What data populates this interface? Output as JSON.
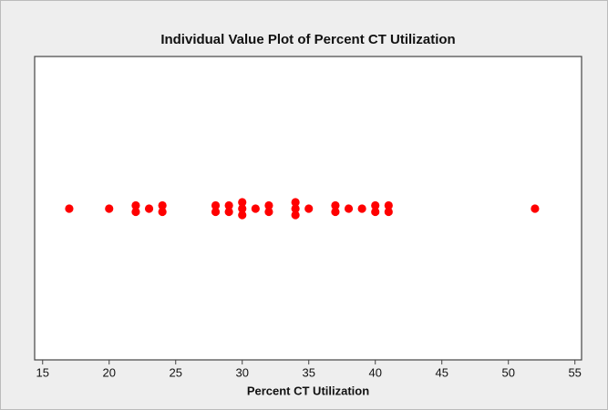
{
  "chart_data": {
    "type": "dotplot",
    "title": "Individual Value Plot of Percent CT Utilization",
    "xlabel": "Percent CT Utilization",
    "values": [
      17,
      20,
      22,
      22,
      23,
      24,
      24,
      28,
      28,
      29,
      29,
      30,
      30,
      30,
      31,
      32,
      32,
      34,
      34,
      34,
      35,
      37,
      37,
      38,
      39,
      40,
      40,
      41,
      41,
      52
    ],
    "color": "#ff0000",
    "xlim": [
      14.4,
      55.5
    ],
    "xticks": [
      15,
      20,
      25,
      30,
      35,
      40,
      45,
      50,
      55
    ]
  }
}
